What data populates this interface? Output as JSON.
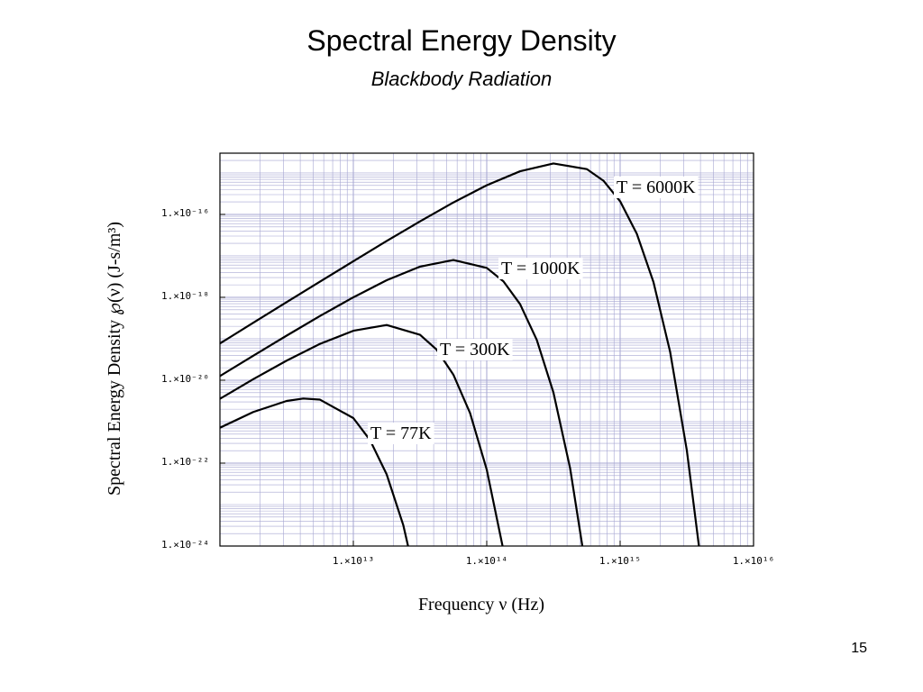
{
  "chart_data": {
    "type": "line",
    "title": "Spectral Energy Density",
    "subtitle": "Blackbody Radiation",
    "xlabel": "Frequency ν (Hz)",
    "ylabel": "Spectral Energy Density ℘(ν) (J-s/m³)",
    "page_number": "15",
    "xscale": "log",
    "yscale": "log",
    "grid": true,
    "xlim": [
      1000000000000.0,
      1e+16
    ],
    "ylim": [
      1e-24,
      3e-15
    ],
    "xticks": [
      {
        "value": 10000000000000.0,
        "label": "1.×10¹³"
      },
      {
        "value": 100000000000000.0,
        "label": "1.×10¹⁴"
      },
      {
        "value": 1000000000000000.0,
        "label": "1.×10¹⁵"
      },
      {
        "value": 1e+16,
        "label": "1.×10¹⁶"
      }
    ],
    "yticks": [
      {
        "value": 1e-16,
        "label": "1.×10⁻¹⁶"
      },
      {
        "value": 1e-18,
        "label": "1.×10⁻¹⁸"
      },
      {
        "value": 1e-20,
        "label": "1.×10⁻²⁰"
      },
      {
        "value": 1e-22,
        "label": "1.×10⁻²²"
      },
      {
        "value": 1e-24,
        "label": "1.×10⁻²⁴"
      }
    ],
    "series": [
      {
        "name": "T = 6000K",
        "color": "#000000",
        "x": [
          1000000000000.0,
          1778000000000.0,
          3162000000000.0,
          5623000000000.0,
          10000000000000.0,
          17780000000000.0,
          31620000000000.0,
          56230000000000.0,
          100000000000000.0,
          177800000000000.0,
          316200000000000.0,
          562300000000000.0,
          749900000000000.0,
          1000000000000000.0,
          1334000000000000.0,
          1778000000000000.0,
          2371000000000000.0,
          3162000000000000.0,
          3981000000000000.0
        ],
        "values": [
          7.69e-20,
          2.43e-19,
          7.64e-19,
          2.39e-18,
          7.41e-18,
          2.28e-17,
          6.79e-17,
          1.94e-16,
          5.05e-16,
          1.1e-15,
          1.69e-15,
          1.24e-15,
          6.49e-16,
          2.07e-16,
          3.4e-17,
          2.32e-18,
          4.79e-20,
          2.03e-22,
          5.79e-25
        ]
      },
      {
        "name": "T = 1000K",
        "color": "#000000",
        "x": [
          1000000000000.0,
          1778000000000.0,
          3162000000000.0,
          5623000000000.0,
          10000000000000.0,
          17780000000000.0,
          31620000000000.0,
          56230000000000.0,
          100000000000000.0,
          133400000000000.0,
          177800000000000.0,
          237100000000000.0,
          316200000000000.0,
          421700000000000.0,
          562300000000000.0
        ],
        "values": [
          1.26e-20,
          3.9e-20,
          1.19e-19,
          3.55e-19,
          1e-18,
          2.58e-18,
          5.5e-18,
          7.93e-18,
          5.13e-18,
          2.43e-18,
          6.84e-19,
          9.42e-20,
          5.05e-21,
          7.52e-23,
          2.08e-25
        ]
      },
      {
        "name": "T = 300K",
        "color": "#000000",
        "x": [
          1000000000000.0,
          1778000000000.0,
          3162000000000.0,
          5623000000000.0,
          10000000000000.0,
          17780000000000.0,
          31620000000000.0,
          42170000000000.0,
          56230000000000.0,
          74990000000000.0,
          100000000000000.0,
          133400000000000.0
        ],
        "values": [
          3.56e-21,
          1.06e-20,
          2.97e-20,
          7.53e-20,
          1.56e-19,
          2.15e-19,
          1.25e-19,
          5.45e-20,
          1.36e-20,
          1.61e-21,
          6.98e-23,
          7.91e-25
        ]
      },
      {
        "name": "T = 77K",
        "color": "#000000",
        "x": [
          1000000000000.0,
          1778000000000.0,
          3162000000000.0,
          4217000000000.0,
          5623000000000.0,
          10000000000000.0,
          13340000000000.0,
          17780000000000.0,
          23710000000000.0,
          31620000000000.0
        ],
        "values": [
          7.14e-22,
          1.71e-21,
          3.16e-21,
          3.61e-21,
          3.4e-21,
          1.22e-21,
          3.59e-22,
          5.35e-23,
          3.15e-24,
          5.4e-26
        ]
      }
    ]
  }
}
